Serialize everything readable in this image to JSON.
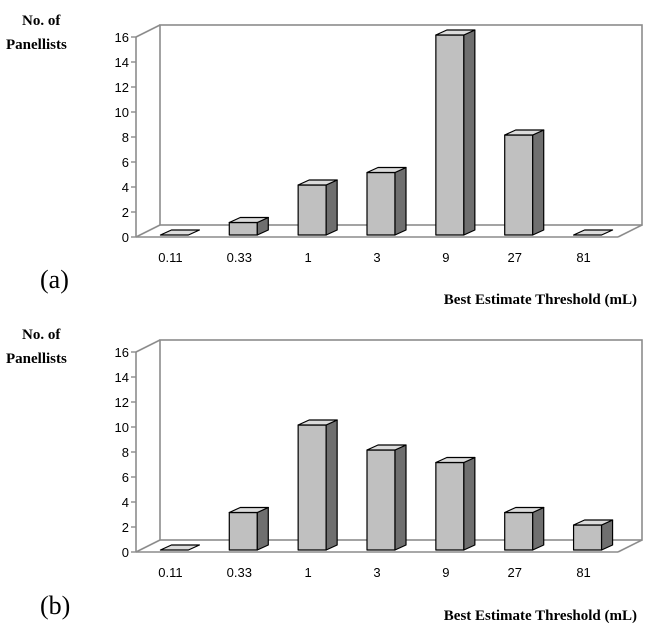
{
  "chart_data": [
    {
      "type": "bar",
      "panel_label": "(a)",
      "ylabel": [
        "No. of",
        "Panellists"
      ],
      "xlabel": "Best Estimate Threshold (mL)",
      "categories": [
        "0.11",
        "0.33",
        "1",
        "3",
        "9",
        "27",
        "81"
      ],
      "values": [
        0,
        1,
        4,
        5,
        16,
        8,
        0
      ],
      "ylim": [
        0,
        16
      ],
      "yticks": [
        "0",
        "2",
        "4",
        "6",
        "8",
        "10",
        "12",
        "14",
        "16"
      ],
      "grid": false,
      "bar_color": "#c0c0c0"
    },
    {
      "type": "bar",
      "panel_label": "(b)",
      "ylabel": [
        "No. of",
        "Panellists"
      ],
      "xlabel": "Best Estimate Threshold (mL)",
      "categories": [
        "0.11",
        "0.33",
        "1",
        "3",
        "9",
        "27",
        "81"
      ],
      "values": [
        0,
        3,
        10,
        8,
        7,
        3,
        2
      ],
      "ylim": [
        0,
        16
      ],
      "yticks": [
        "0",
        "2",
        "4",
        "6",
        "8",
        "10",
        "12",
        "14",
        "16"
      ],
      "grid": false,
      "bar_color": "#c0c0c0"
    }
  ]
}
